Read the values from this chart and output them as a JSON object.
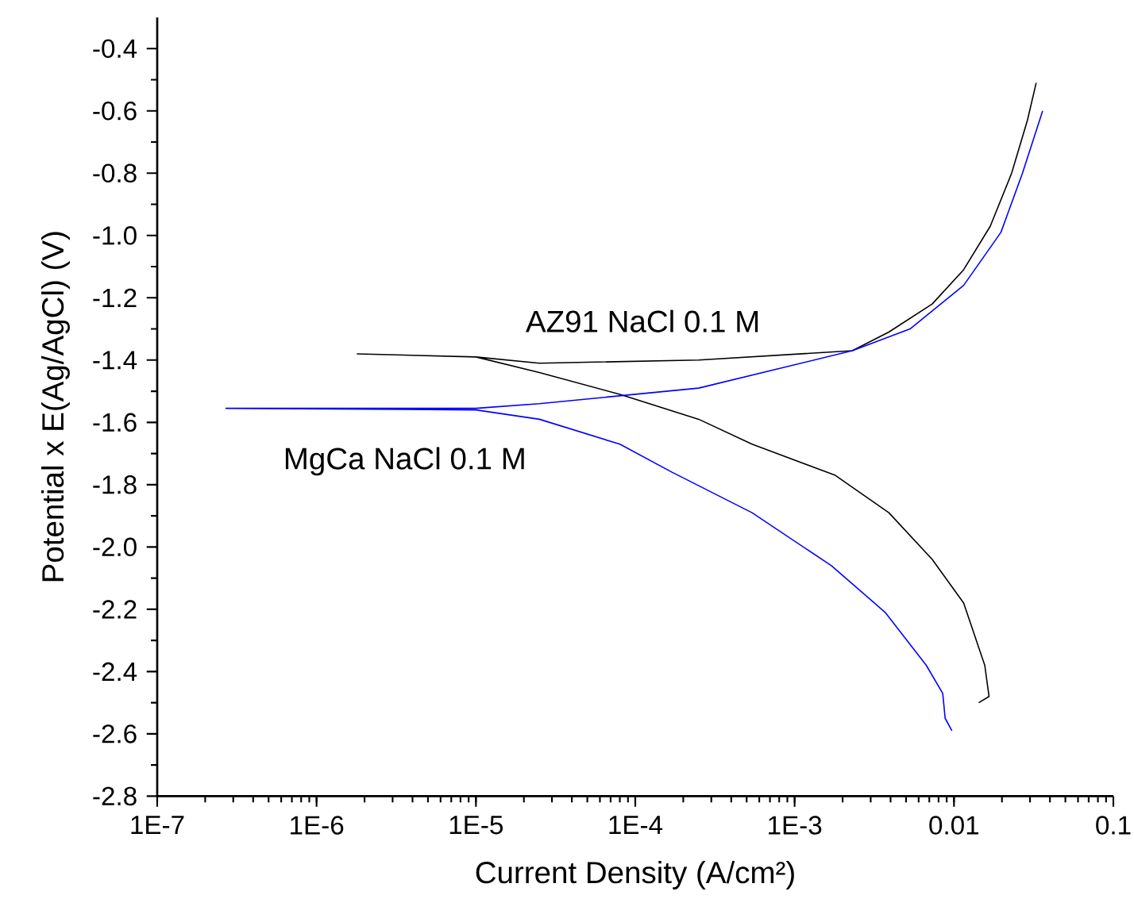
{
  "chart_data": {
    "type": "line",
    "xlabel": "Current Density (A/cm²)",
    "ylabel": "Potential x E(Ag/AgCl) (V)",
    "log": "x",
    "grid": false,
    "legend": false,
    "marker": "none",
    "line_style": "solid",
    "xlim": [
      1e-07,
      0.1
    ],
    "ylim": [
      -2.8,
      -0.3
    ],
    "xticks": [
      {
        "value": 1e-07,
        "label": "1E-7"
      },
      {
        "value": 1e-06,
        "label": "1E-6"
      },
      {
        "value": 1e-05,
        "label": "1E-5"
      },
      {
        "value": 0.0001,
        "label": "1E-4"
      },
      {
        "value": 0.001,
        "label": "1E-3"
      },
      0.01,
      0.1
    ],
    "yticks": [
      -2.8,
      -2.6,
      -2.4,
      -2.2,
      {
        "value": -2.0,
        "label": "-2.0"
      },
      -1.8,
      -1.6,
      -1.4,
      -1.2,
      {
        "value": -1.0,
        "label": "-1.0"
      },
      -0.8,
      -0.6,
      -0.4
    ],
    "series": [
      {
        "name": "AZ91 NaCl 0.1 M",
        "color": "#000000",
        "x": [
          0.0143,
          0.0166,
          0.0156,
          0.0115,
          0.0073,
          0.0039,
          0.0018,
          0.00054,
          0.00025,
          8e-05,
          2.5e-05,
          1e-05,
          1.8e-06,
          1e-05,
          2.5e-05,
          0.00025,
          0.0023,
          0.0039,
          0.0073,
          0.0115,
          0.0169,
          0.023,
          0.0289,
          0.0328
        ],
        "values": [
          -2.5,
          -2.48,
          -2.38,
          -2.18,
          -2.04,
          -1.89,
          -1.77,
          -1.67,
          -1.59,
          -1.51,
          -1.44,
          -1.39,
          -1.38,
          -1.39,
          -1.41,
          -1.4,
          -1.37,
          -1.31,
          -1.22,
          -1.11,
          -0.97,
          -0.8,
          -0.63,
          -0.51
        ]
      },
      {
        "name": "MgCa NaCl 0.1 M",
        "color": "#0000ff",
        "x": [
          0.0097,
          0.0088,
          0.0085,
          0.0067,
          0.0037,
          0.0017,
          0.00054,
          0.00017,
          8e-05,
          2.5e-05,
          1e-05,
          2.7e-07,
          1e-05,
          2.5e-05,
          0.00025,
          0.0023,
          0.0053,
          0.0115,
          0.0197,
          0.0269,
          0.036
        ],
        "values": [
          -2.59,
          -2.55,
          -2.47,
          -2.38,
          -2.21,
          -2.06,
          -1.89,
          -1.76,
          -1.67,
          -1.59,
          -1.56,
          -1.555,
          -1.555,
          -1.54,
          -1.49,
          -1.37,
          -1.3,
          -1.16,
          -0.99,
          -0.8,
          -0.6
        ]
      }
    ]
  }
}
